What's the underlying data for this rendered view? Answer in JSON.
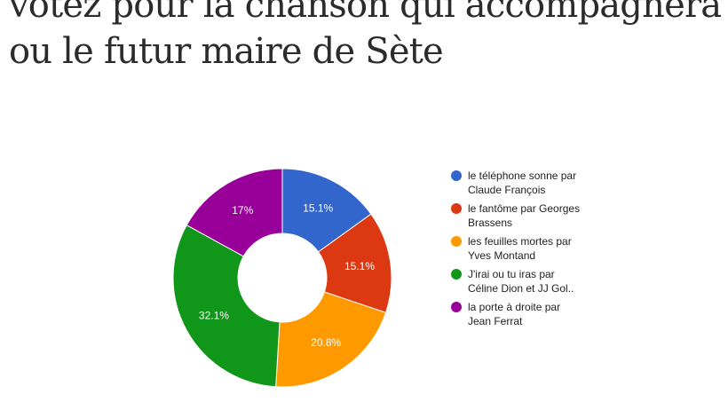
{
  "page": {
    "title_lines": [
      "votez pour la chanson qui accompagnera la",
      "ou le futur maire de Sète"
    ]
  },
  "chart_data": {
    "type": "pie",
    "donut": true,
    "title": "",
    "legend_position": "right",
    "slices": [
      {
        "label_lines": [
          "le téléphone sonne par",
          "Claude François"
        ],
        "value": 15.1,
        "display": "15.1%",
        "color": "#3366cc"
      },
      {
        "label_lines": [
          "le fantôme par Georges",
          "Brassens"
        ],
        "value": 15.1,
        "display": "15.1%",
        "color": "#dc3912"
      },
      {
        "label_lines": [
          "les feuilles mortes par",
          "Yves Montand"
        ],
        "value": 20.8,
        "display": "20.8%",
        "color": "#ff9900"
      },
      {
        "label_lines": [
          "J'irai ou tu iras par",
          "Céline Dion et JJ Gol.."
        ],
        "value": 32.1,
        "display": "32.1%",
        "color": "#109618"
      },
      {
        "label_lines": [
          "la porte à droite par",
          "Jean Ferrat"
        ],
        "value": 17,
        "display": "17%",
        "color": "#990099"
      }
    ]
  }
}
